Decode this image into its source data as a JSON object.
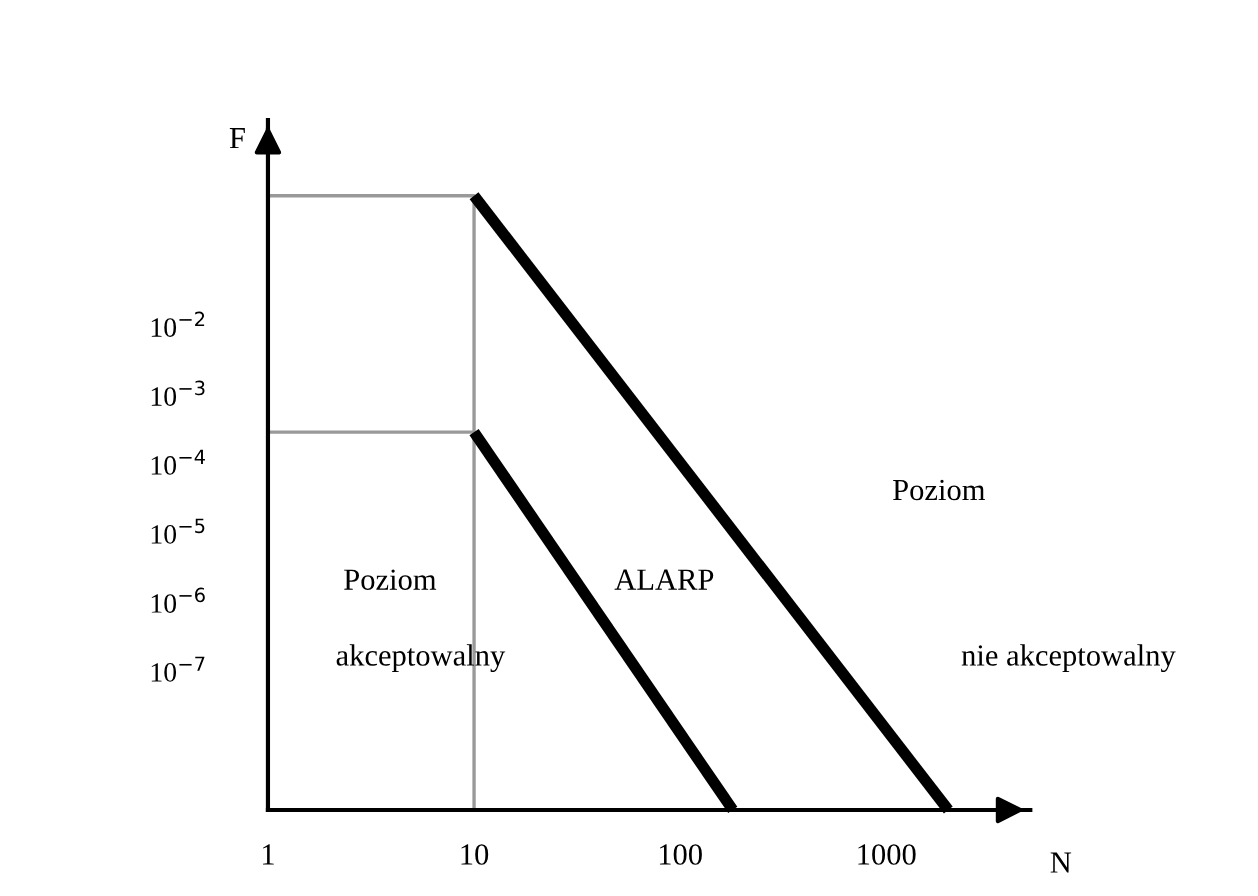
{
  "chart_data": {
    "type": "line",
    "xlabel": "N",
    "ylabel": "F",
    "log": "xy",
    "grid": false,
    "marker": "none",
    "line_style": "solid",
    "xlim": [
      1,
      5000
    ],
    "ylim": [
      1e-09,
      10
    ],
    "xticks": [
      1,
      10,
      100,
      1000
    ],
    "yticks": [
      {
        "value": 0.01,
        "label": "10$^{−2}$"
      },
      {
        "value": 0.001,
        "label": "10$^{−3}$"
      },
      {
        "value": 0.0001,
        "label": "10$^{−4}$"
      },
      {
        "value": 1e-05,
        "label": "10$^{−5}$"
      },
      {
        "value": 1e-06,
        "label": "10$^{−6}$"
      },
      {
        "value": 1e-07,
        "label": "10$^{−7}$"
      }
    ],
    "tick_labels": "xy",
    "series": [
      {
        "color": "#999999",
        "x": [
          1,
          10,
          10
        ],
        "values": [
          0.8,
          0.8,
          1e-09
        ]
      },
      {
        "color": "#999999",
        "x": [
          1,
          10
        ],
        "values": [
          0.0003,
          0.0003
        ]
      },
      {
        "color": "#000000",
        "x": [
          10,
          2000
        ],
        "values": [
          0.8,
          1e-09
        ]
      },
      {
        "color": "#000000",
        "x": [
          10,
          180
        ],
        "values": [
          0.0003,
          1e-09
        ]
      }
    ],
    "annotations": [
      "Poziom",
      "akceptowalny",
      "ALARP",
      "Poziom",
      "nie akceptowalny"
    ]
  }
}
